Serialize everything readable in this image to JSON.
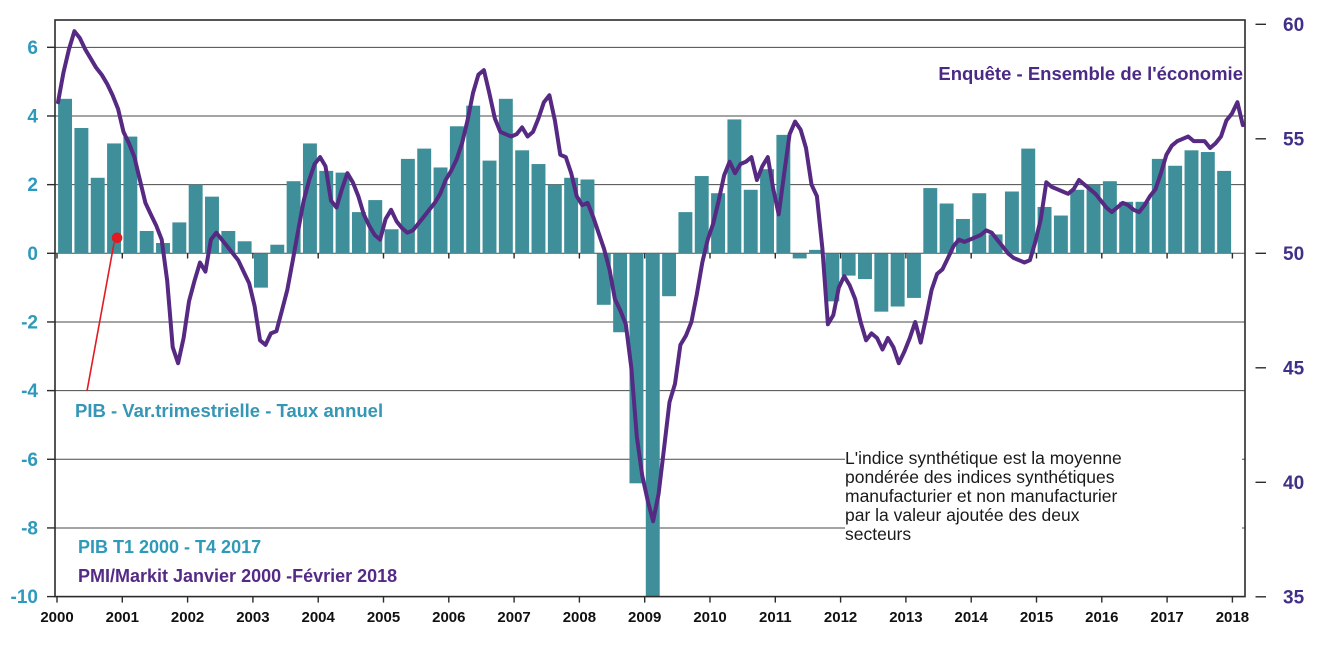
{
  "labels": {
    "line_series_title": "Enquête - Ensemble de l'économie",
    "bar_series_label": "PIB - Var.trimestrielle  - Taux annuel",
    "bar_series_range": "PIB T1 2000 - T4 2017",
    "line_series_range": "PMI/Markit Janvier 2000 -Février 2018",
    "note": "L'indice synthétique est la moyenne\npondérée des indices synthétiques\nmanufacturier et non manufacturier\npar la valeur ajoutée  des deux\nsecteurs"
  },
  "colors": {
    "bar": "#3E8F9A",
    "line": "#562983",
    "left_axis_text": "#2D99BD",
    "right_axis_text": "#413087",
    "year_text": "#111111",
    "grid": "#4a4a4a",
    "frame": "#2b2b2b",
    "marker": "#E11B22"
  },
  "chart_data": {
    "type": "combo",
    "left_axis": {
      "tick_labels": [
        "6",
        "4",
        "2",
        "0",
        "-2",
        "-4",
        "-6",
        "-8",
        "-10"
      ],
      "range": [
        -10,
        6.8
      ]
    },
    "right_axis": {
      "tick_labels": [
        "60",
        "55",
        "50",
        "45",
        "40",
        "35"
      ],
      "range": [
        35,
        60.3
      ]
    },
    "x_axis": {
      "tick_labels": [
        "2000",
        "2001",
        "2002",
        "2003",
        "2004",
        "2005",
        "2006",
        "2007",
        "2008",
        "2009",
        "2010",
        "2011",
        "2012",
        "2013",
        "2014",
        "2015",
        "2016",
        "2017",
        "2018"
      ]
    },
    "grid": true,
    "series": [
      {
        "name": "PIB - Var.trimestrielle - Taux annuel",
        "type": "bar",
        "axis": "left",
        "frequency": "quarterly",
        "start": "2000-T1",
        "end": "2017-T4",
        "values": [
          4.5,
          3.65,
          2.2,
          3.2,
          3.4,
          0.65,
          0.3,
          0.9,
          2.0,
          1.65,
          0.65,
          0.35,
          -1.0,
          0.25,
          2.1,
          3.2,
          2.4,
          2.35,
          1.2,
          1.55,
          0.7,
          2.75,
          3.05,
          2.5,
          3.7,
          4.3,
          2.7,
          4.5,
          3.0,
          2.6,
          2.0,
          2.2,
          2.15,
          -1.5,
          -2.3,
          -6.7,
          -10.0,
          -1.25,
          1.2,
          2.25,
          1.75,
          3.9,
          1.85,
          2.45,
          3.45,
          -0.15,
          0.1,
          -1.4,
          -0.65,
          -0.75,
          -1.7,
          -1.55,
          -1.3,
          1.9,
          1.45,
          1.0,
          1.75,
          0.55,
          1.8,
          3.05,
          1.35,
          1.1,
          1.85,
          2.0,
          2.1,
          1.5,
          1.5,
          2.75,
          2.55,
          3.0,
          2.95,
          2.4
        ]
      },
      {
        "name": "Enquête - Ensemble de l'économie (PMI/Markit)",
        "type": "line",
        "axis": "right",
        "frequency": "monthly",
        "start": "2000-01",
        "end": "2018-02",
        "values": [
          56.6,
          57.9,
          58.9,
          59.7,
          59.4,
          58.9,
          58.5,
          58.1,
          57.8,
          57.4,
          56.9,
          56.3,
          55.3,
          54.8,
          54.2,
          53.2,
          52.2,
          51.7,
          51.2,
          50.6,
          48.8,
          45.9,
          45.2,
          46.3,
          47.9,
          48.8,
          49.6,
          49.2,
          50.6,
          50.9,
          50.6,
          50.3,
          50.0,
          49.7,
          49.2,
          48.7,
          47.7,
          46.2,
          46.0,
          46.5,
          46.6,
          47.5,
          48.4,
          49.7,
          51.0,
          52.3,
          53.2,
          53.9,
          54.2,
          53.8,
          52.3,
          52.0,
          52.8,
          53.5,
          53.1,
          52.5,
          51.7,
          51.2,
          50.8,
          50.6,
          51.5,
          51.9,
          51.4,
          51.1,
          50.9,
          51.0,
          51.3,
          51.6,
          51.9,
          52.2,
          52.6,
          53.2,
          53.6,
          54.1,
          54.8,
          55.8,
          57.0,
          57.8,
          58.0,
          57.0,
          55.9,
          55.3,
          55.2,
          55.1,
          55.2,
          55.5,
          55.1,
          55.3,
          55.9,
          56.6,
          56.9,
          55.8,
          54.3,
          54.2,
          53.5,
          52.5,
          52.1,
          52.2,
          51.6,
          50.9,
          50.2,
          49.3,
          48.0,
          47.5,
          46.9,
          45.0,
          42.0,
          40.3,
          39.2,
          38.3,
          39.5,
          41.5,
          43.5,
          44.3,
          46.0,
          46.4,
          47.0,
          48.2,
          49.6,
          50.6,
          51.3,
          52.3,
          53.4,
          54.0,
          53.5,
          53.9,
          54.0,
          54.2,
          53.2,
          53.8,
          54.2,
          52.8,
          51.7,
          53.5,
          55.2,
          55.75,
          55.4,
          54.6,
          53.0,
          52.5,
          50.2,
          46.9,
          47.3,
          48.5,
          49.0,
          48.6,
          48.0,
          47.0,
          46.2,
          46.5,
          46.3,
          45.8,
          46.3,
          45.9,
          45.2,
          45.7,
          46.3,
          47.0,
          46.1,
          47.2,
          48.4,
          49.1,
          49.3,
          49.8,
          50.3,
          50.6,
          50.5,
          50.6,
          50.7,
          50.8,
          51.0,
          50.9,
          50.6,
          50.3,
          50.0,
          49.8,
          49.7,
          49.6,
          49.7,
          50.5,
          51.5,
          53.1,
          52.9,
          52.8,
          52.7,
          52.6,
          52.8,
          53.2,
          53.0,
          52.8,
          52.6,
          52.3,
          52.0,
          51.8,
          52.0,
          52.2,
          52.1,
          51.9,
          51.8,
          52.1,
          52.5,
          52.8,
          53.5,
          54.3,
          54.7,
          54.9,
          55.0,
          55.1,
          54.9,
          54.9,
          54.9,
          54.6,
          54.8,
          55.1,
          55.8,
          56.1,
          56.6,
          55.6
        ]
      }
    ],
    "red_marker": {
      "points_to": "bar series",
      "year_position": 2000.92,
      "value": 0.45
    }
  }
}
